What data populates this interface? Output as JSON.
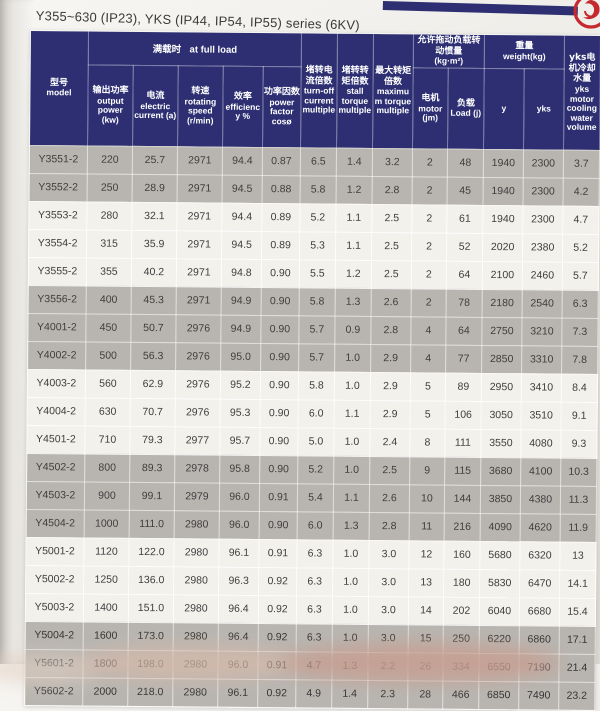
{
  "page": {
    "title": "Y355~630 (IP23), YKS (IP44, IP54, IP55) series (6KV)"
  },
  "colors": {
    "header_navy": "#2d2f72",
    "logo_red": "#c5282e",
    "row_light": "#f3f1ec",
    "row_shaded": "#b8b5b0"
  },
  "table": {
    "header": {
      "model": {
        "zh": "型号",
        "en": "model"
      },
      "full_load": {
        "zh": "满载时",
        "en": "at full load"
      },
      "output_power": {
        "zh": "输出功率",
        "en": "output power (kw)"
      },
      "current": {
        "zh": "电流",
        "en": "electric current (a)"
      },
      "speed": {
        "zh": "转速",
        "en": "rotating speed (r/min)"
      },
      "efficiency": {
        "zh": "效率",
        "en": "efficiency %"
      },
      "power_factor": {
        "zh": "功率因数",
        "en": "power factor cosø"
      },
      "turn_off": {
        "zh": "堵转电流倍数",
        "en": "turn-off current multiple"
      },
      "stall": {
        "zh": "堵转转矩倍数",
        "en": "stall torque multiple"
      },
      "max_torque": {
        "zh": "最大转矩倍数",
        "en": "maximum torque multiple"
      },
      "inertia": {
        "zh": "允许拖动负载转动惯量",
        "en": "(kg·m²)"
      },
      "motor_jm": {
        "zh": "电机",
        "en": "motor (jm)"
      },
      "load_j": {
        "zh": "负载",
        "en": "Load (j)"
      },
      "weight": {
        "zh": "重量",
        "en": "weight(kg)"
      },
      "weight_y": {
        "en": "y"
      },
      "weight_yks": {
        "en": "yks"
      },
      "cooling": {
        "zh": "yks电机冷却水量",
        "en": "yks motor cooling water volume"
      }
    },
    "rows": [
      {
        "model": "Y3551-2",
        "values": [
          "220",
          "25.7",
          "2971",
          "94.4",
          "0.87",
          "6.5",
          "1.4",
          "3.2",
          "2",
          "48",
          "1940",
          "2300",
          "3.7"
        ]
      },
      {
        "model": "Y3552-2",
        "values": [
          "250",
          "28.9",
          "2971",
          "94.5",
          "0.88",
          "5.8",
          "1.2",
          "2.8",
          "2",
          "45",
          "1940",
          "2300",
          "4.2"
        ]
      },
      {
        "model": "Y3553-2",
        "values": [
          "280",
          "32.1",
          "2971",
          "94.4",
          "0.89",
          "5.2",
          "1.1",
          "2.5",
          "2",
          "61",
          "1940",
          "2300",
          "4.7"
        ]
      },
      {
        "model": "Y3554-2",
        "values": [
          "315",
          "35.9",
          "2971",
          "94.5",
          "0.89",
          "5.3",
          "1.1",
          "2.5",
          "2",
          "52",
          "2020",
          "2380",
          "5.2"
        ]
      },
      {
        "model": "Y3555-2",
        "values": [
          "355",
          "40.2",
          "2971",
          "94.8",
          "0.90",
          "5.5",
          "1.2",
          "2.5",
          "2",
          "64",
          "2100",
          "2460",
          "5.7"
        ]
      },
      {
        "model": "Y3556-2",
        "values": [
          "400",
          "45.3",
          "2971",
          "94.9",
          "0.90",
          "5.8",
          "1.3",
          "2.6",
          "2",
          "78",
          "2180",
          "2540",
          "6.3"
        ]
      },
      {
        "model": "Y4001-2",
        "values": [
          "450",
          "50.7",
          "2976",
          "94.9",
          "0.90",
          "5.7",
          "0.9",
          "2.8",
          "4",
          "64",
          "2750",
          "3210",
          "7.3"
        ]
      },
      {
        "model": "Y4002-2",
        "values": [
          "500",
          "56.3",
          "2976",
          "95.0",
          "0.90",
          "5.7",
          "1.0",
          "2.9",
          "4",
          "77",
          "2850",
          "3310",
          "7.8"
        ]
      },
      {
        "model": "Y4003-2",
        "values": [
          "560",
          "62.9",
          "2976",
          "95.2",
          "0.90",
          "5.8",
          "1.0",
          "2.9",
          "5",
          "89",
          "2950",
          "3410",
          "8.4"
        ]
      },
      {
        "model": "Y4004-2",
        "values": [
          "630",
          "70.7",
          "2976",
          "95.3",
          "0.90",
          "6.0",
          "1.1",
          "2.9",
          "5",
          "106",
          "3050",
          "3510",
          "9.1"
        ]
      },
      {
        "model": "Y4501-2",
        "values": [
          "710",
          "79.3",
          "2977",
          "95.7",
          "0.90",
          "5.0",
          "1.0",
          "2.4",
          "8",
          "111",
          "3550",
          "4080",
          "9.3"
        ]
      },
      {
        "model": "Y4502-2",
        "values": [
          "800",
          "89.3",
          "2978",
          "95.8",
          "0.90",
          "5.2",
          "1.0",
          "2.5",
          "9",
          "115",
          "3680",
          "4100",
          "10.3"
        ]
      },
      {
        "model": "Y4503-2",
        "values": [
          "900",
          "99.1",
          "2979",
          "96.0",
          "0.91",
          "5.4",
          "1.1",
          "2.6",
          "10",
          "144",
          "3850",
          "4380",
          "11.3"
        ]
      },
      {
        "model": "Y4504-2",
        "values": [
          "1000",
          "111.0",
          "2980",
          "96.0",
          "0.90",
          "6.0",
          "1.3",
          "2.8",
          "11",
          "216",
          "4090",
          "4620",
          "11.9"
        ]
      },
      {
        "model": "Y5001-2",
        "values": [
          "1120",
          "122.0",
          "2980",
          "96.1",
          "0.91",
          "6.3",
          "1.0",
          "3.0",
          "12",
          "160",
          "5680",
          "6320",
          "13"
        ]
      },
      {
        "model": "Y5002-2",
        "values": [
          "1250",
          "136.0",
          "2980",
          "96.3",
          "0.92",
          "6.3",
          "1.0",
          "3.0",
          "13",
          "180",
          "5830",
          "6470",
          "14.1"
        ]
      },
      {
        "model": "Y5003-2",
        "values": [
          "1400",
          "151.0",
          "2980",
          "96.4",
          "0.92",
          "6.3",
          "1.0",
          "3.0",
          "14",
          "202",
          "6040",
          "6680",
          "15.4"
        ]
      },
      {
        "model": "Y5004-2",
        "values": [
          "1600",
          "173.0",
          "2980",
          "96.4",
          "0.92",
          "6.3",
          "1.0",
          "3.0",
          "15",
          "250",
          "6220",
          "6860",
          "17.1"
        ]
      },
      {
        "model": "Y5601-2",
        "values": [
          "1800",
          "198.0",
          "2980",
          "96.0",
          "0.91",
          "4.7",
          "1.3",
          "2.2",
          "26",
          "334",
          "6550",
          "7190",
          "21.4"
        ]
      },
      {
        "model": "Y5602-2",
        "values": [
          "2000",
          "218.0",
          "2980",
          "96.1",
          "0.92",
          "4.9",
          "1.4",
          "2.3",
          "28",
          "466",
          "6850",
          "7490",
          "23.2"
        ]
      }
    ]
  }
}
